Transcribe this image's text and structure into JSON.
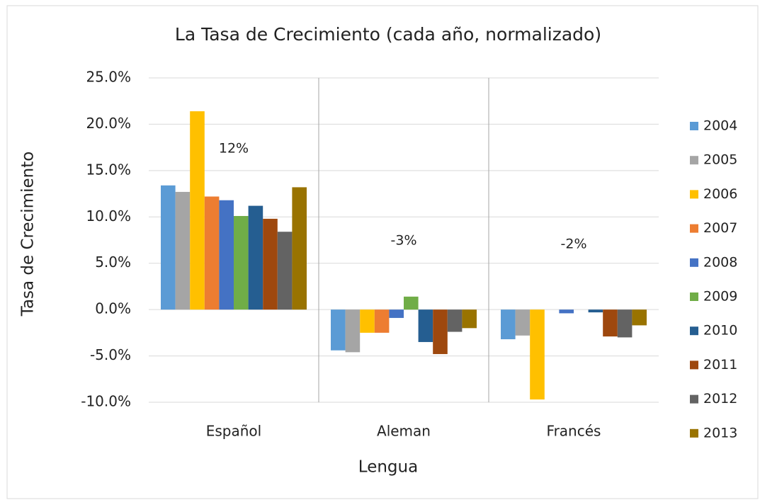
{
  "chart_data": {
    "type": "bar",
    "title": "La Tasa de Crecimiento (cada año, normalizado)",
    "x_label": "Lengua",
    "y_label": "Tasa de Crecimiento",
    "categories": [
      "Español",
      "Aleman",
      "Francés"
    ],
    "annotations": [
      "12%",
      "-3%",
      "-2%"
    ],
    "ylim": [
      -10,
      25
    ],
    "yticks": [
      {
        "value": -10,
        "label": "-10.0%"
      },
      {
        "value": -5,
        "label": "-5.0%"
      },
      {
        "value": 0,
        "label": "0.0%"
      },
      {
        "value": 5,
        "label": "5.0%"
      },
      {
        "value": 10,
        "label": "10.0%"
      },
      {
        "value": 15,
        "label": "15.0%"
      },
      {
        "value": 20,
        "label": "20.0%"
      },
      {
        "value": 25,
        "label": "25.0%"
      }
    ],
    "grid": true,
    "legend": "right",
    "series": [
      {
        "name": "2004",
        "color": "#5b9bd5",
        "values": [
          13.4,
          -4.4,
          -3.2
        ]
      },
      {
        "name": "2005",
        "color": "#a5a5a5",
        "values": [
          12.7,
          -4.6,
          -2.8
        ]
      },
      {
        "name": "2006",
        "color": "#ffc000",
        "values": [
          21.4,
          -2.5,
          -9.7
        ]
      },
      {
        "name": "2007",
        "color": "#ed7d31",
        "values": [
          12.2,
          -2.5,
          0
        ]
      },
      {
        "name": "2008",
        "color": "#4472c4",
        "values": [
          11.8,
          -0.9,
          -0.4
        ]
      },
      {
        "name": "2009",
        "color": "#70ad47",
        "values": [
          10.1,
          1.4,
          0
        ]
      },
      {
        "name": "2010",
        "color": "#255e91",
        "values": [
          11.2,
          -3.5,
          -0.3
        ]
      },
      {
        "name": "2011",
        "color": "#9e480e",
        "values": [
          9.8,
          -4.8,
          -2.9
        ]
      },
      {
        "name": "2012",
        "color": "#636363",
        "values": [
          8.4,
          -2.4,
          -3.0
        ]
      },
      {
        "name": "2013",
        "color": "#997300",
        "values": [
          13.2,
          -2.0,
          -1.7
        ]
      }
    ]
  }
}
